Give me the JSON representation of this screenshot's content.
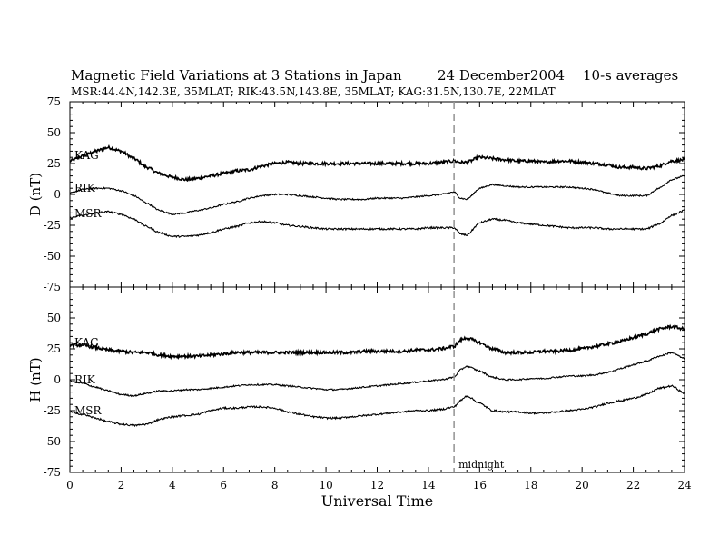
{
  "header": {
    "title": "Magnetic Field Variations at 3 Stations in Japan",
    "date": "24 December2004",
    "averaging": "10-s averages",
    "stations_line": "MSR:44.4N,142.3E, 35MLAT;  RIK:43.5N,143.8E, 35MLAT;  KAG:31.5N,130.7E, 22MLAT"
  },
  "chart_data": [
    {
      "type": "line",
      "panel": "top",
      "ylabel": "D (nT)",
      "xlabel": "",
      "xlim": [
        0,
        24
      ],
      "ylim": [
        -75,
        75
      ],
      "yticks": [
        -75,
        -50,
        -25,
        0,
        25,
        50,
        75
      ],
      "ytick_labels": [
        "-75",
        "-50",
        "-25",
        "0",
        "25",
        "50",
        "75"
      ],
      "grid": false,
      "x": [
        0,
        0.5,
        1,
        1.5,
        2,
        2.5,
        3,
        3.5,
        4,
        4.5,
        5,
        5.5,
        6,
        6.5,
        7,
        7.5,
        8,
        8.5,
        9,
        9.5,
        10,
        10.5,
        11,
        11.5,
        12,
        12.5,
        13,
        13.5,
        14,
        14.5,
        15,
        15.25,
        15.5,
        16,
        16.5,
        17,
        17.5,
        18,
        18.5,
        19,
        19.5,
        20,
        20.5,
        21,
        21.5,
        22,
        22.5,
        23,
        23.5,
        24
      ],
      "series": [
        {
          "name": "KAG",
          "noise": 1.2,
          "values": [
            27,
            31,
            35,
            38,
            35,
            29,
            22,
            17,
            14,
            12,
            13,
            15,
            17,
            19,
            20,
            23,
            25,
            26,
            25,
            25,
            25,
            25,
            25,
            25,
            25,
            25,
            25,
            25,
            25,
            26,
            27,
            26,
            26,
            30,
            29,
            28,
            27,
            27,
            26,
            27,
            27,
            26,
            25,
            24,
            22,
            22,
            21,
            23,
            27,
            28
          ]
        },
        {
          "name": "RIK",
          "noise": 0.6,
          "values": [
            1,
            4,
            5,
            5,
            3,
            -1,
            -7,
            -13,
            -16,
            -15,
            -13,
            -11,
            -8,
            -6,
            -3,
            -1,
            0,
            0,
            -1,
            -2,
            -3,
            -4,
            -4,
            -4,
            -3,
            -3,
            -3,
            -2,
            -1,
            0,
            2,
            -3,
            -4,
            5,
            8,
            7,
            6,
            6,
            6,
            6,
            6,
            5,
            4,
            1,
            -1,
            -1,
            -1,
            5,
            12,
            15
          ]
        },
        {
          "name": "MSR",
          "noise": 0.7,
          "values": [
            -19,
            -17,
            -15,
            -14,
            -16,
            -20,
            -26,
            -31,
            -34,
            -34,
            -33,
            -31,
            -28,
            -26,
            -23,
            -22,
            -23,
            -25,
            -26,
            -27,
            -28,
            -28,
            -28,
            -28,
            -28,
            -28,
            -28,
            -28,
            -27,
            -27,
            -27,
            -32,
            -33,
            -23,
            -20,
            -21,
            -23,
            -24,
            -25,
            -26,
            -27,
            -27,
            -27,
            -28,
            -28,
            -28,
            -28,
            -24,
            -17,
            -13
          ]
        }
      ]
    },
    {
      "type": "line",
      "panel": "bottom",
      "ylabel": "H (nT)",
      "xlabel": "Universal Time",
      "xlim": [
        0,
        24
      ],
      "ylim": [
        -75,
        75
      ],
      "yticks": [
        -75,
        -50,
        -25,
        0,
        25,
        50,
        75
      ],
      "ytick_labels": [
        "-75",
        "-50",
        "-25",
        "0",
        "25",
        "50",
        ""
      ],
      "xticks": [
        0,
        2,
        4,
        6,
        8,
        10,
        12,
        14,
        16,
        18,
        20,
        22,
        24
      ],
      "xtick_labels": [
        "0",
        "2",
        "4",
        "6",
        "8",
        "10",
        "12",
        "14",
        "16",
        "18",
        "20",
        "22",
        "24"
      ],
      "grid": false,
      "x": [
        0,
        0.5,
        1,
        1.5,
        2,
        2.5,
        3,
        3.5,
        4,
        4.5,
        5,
        5.5,
        6,
        6.5,
        7,
        7.5,
        8,
        8.5,
        9,
        9.5,
        10,
        10.5,
        11,
        11.5,
        12,
        12.5,
        13,
        13.5,
        14,
        14.5,
        15,
        15.25,
        15.5,
        16,
        16.5,
        17,
        17.5,
        18,
        18.5,
        19,
        19.5,
        20,
        20.5,
        21,
        21.5,
        22,
        22.5,
        23,
        23.5,
        24
      ],
      "series": [
        {
          "name": "KAG",
          "noise": 1.2,
          "values": [
            28,
            28,
            26,
            24,
            23,
            22,
            22,
            20,
            19,
            19,
            19,
            20,
            21,
            22,
            22,
            22,
            22,
            22,
            22,
            22,
            22,
            22,
            22,
            23,
            23,
            23,
            23,
            24,
            24,
            25,
            27,
            32,
            34,
            30,
            25,
            22,
            22,
            22,
            23,
            23,
            24,
            25,
            27,
            29,
            31,
            34,
            37,
            41,
            43,
            41
          ]
        },
        {
          "name": "RIK",
          "noise": 0.6,
          "values": [
            -1,
            -3,
            -6,
            -9,
            -12,
            -13,
            -11,
            -9,
            -9,
            -8,
            -8,
            -7,
            -6,
            -5,
            -4,
            -4,
            -4,
            -5,
            -6,
            -7,
            -8,
            -8,
            -7,
            -6,
            -5,
            -4,
            -3,
            -2,
            -1,
            0,
            2,
            8,
            11,
            7,
            2,
            0,
            0,
            1,
            1,
            2,
            3,
            3,
            4,
            6,
            9,
            12,
            15,
            19,
            22,
            17
          ]
        },
        {
          "name": "MSR",
          "noise": 0.7,
          "values": [
            -26,
            -28,
            -31,
            -34,
            -36,
            -37,
            -36,
            -32,
            -30,
            -29,
            -28,
            -25,
            -23,
            -23,
            -22,
            -22,
            -23,
            -26,
            -28,
            -30,
            -31,
            -31,
            -30,
            -29,
            -28,
            -27,
            -26,
            -25,
            -25,
            -24,
            -22,
            -17,
            -13,
            -19,
            -25,
            -26,
            -26,
            -27,
            -27,
            -26,
            -25,
            -24,
            -22,
            -19,
            -17,
            -15,
            -12,
            -7,
            -5,
            -11
          ]
        }
      ]
    }
  ],
  "annotations": {
    "midnight_label": "midnight",
    "midnight_ut": 15
  }
}
